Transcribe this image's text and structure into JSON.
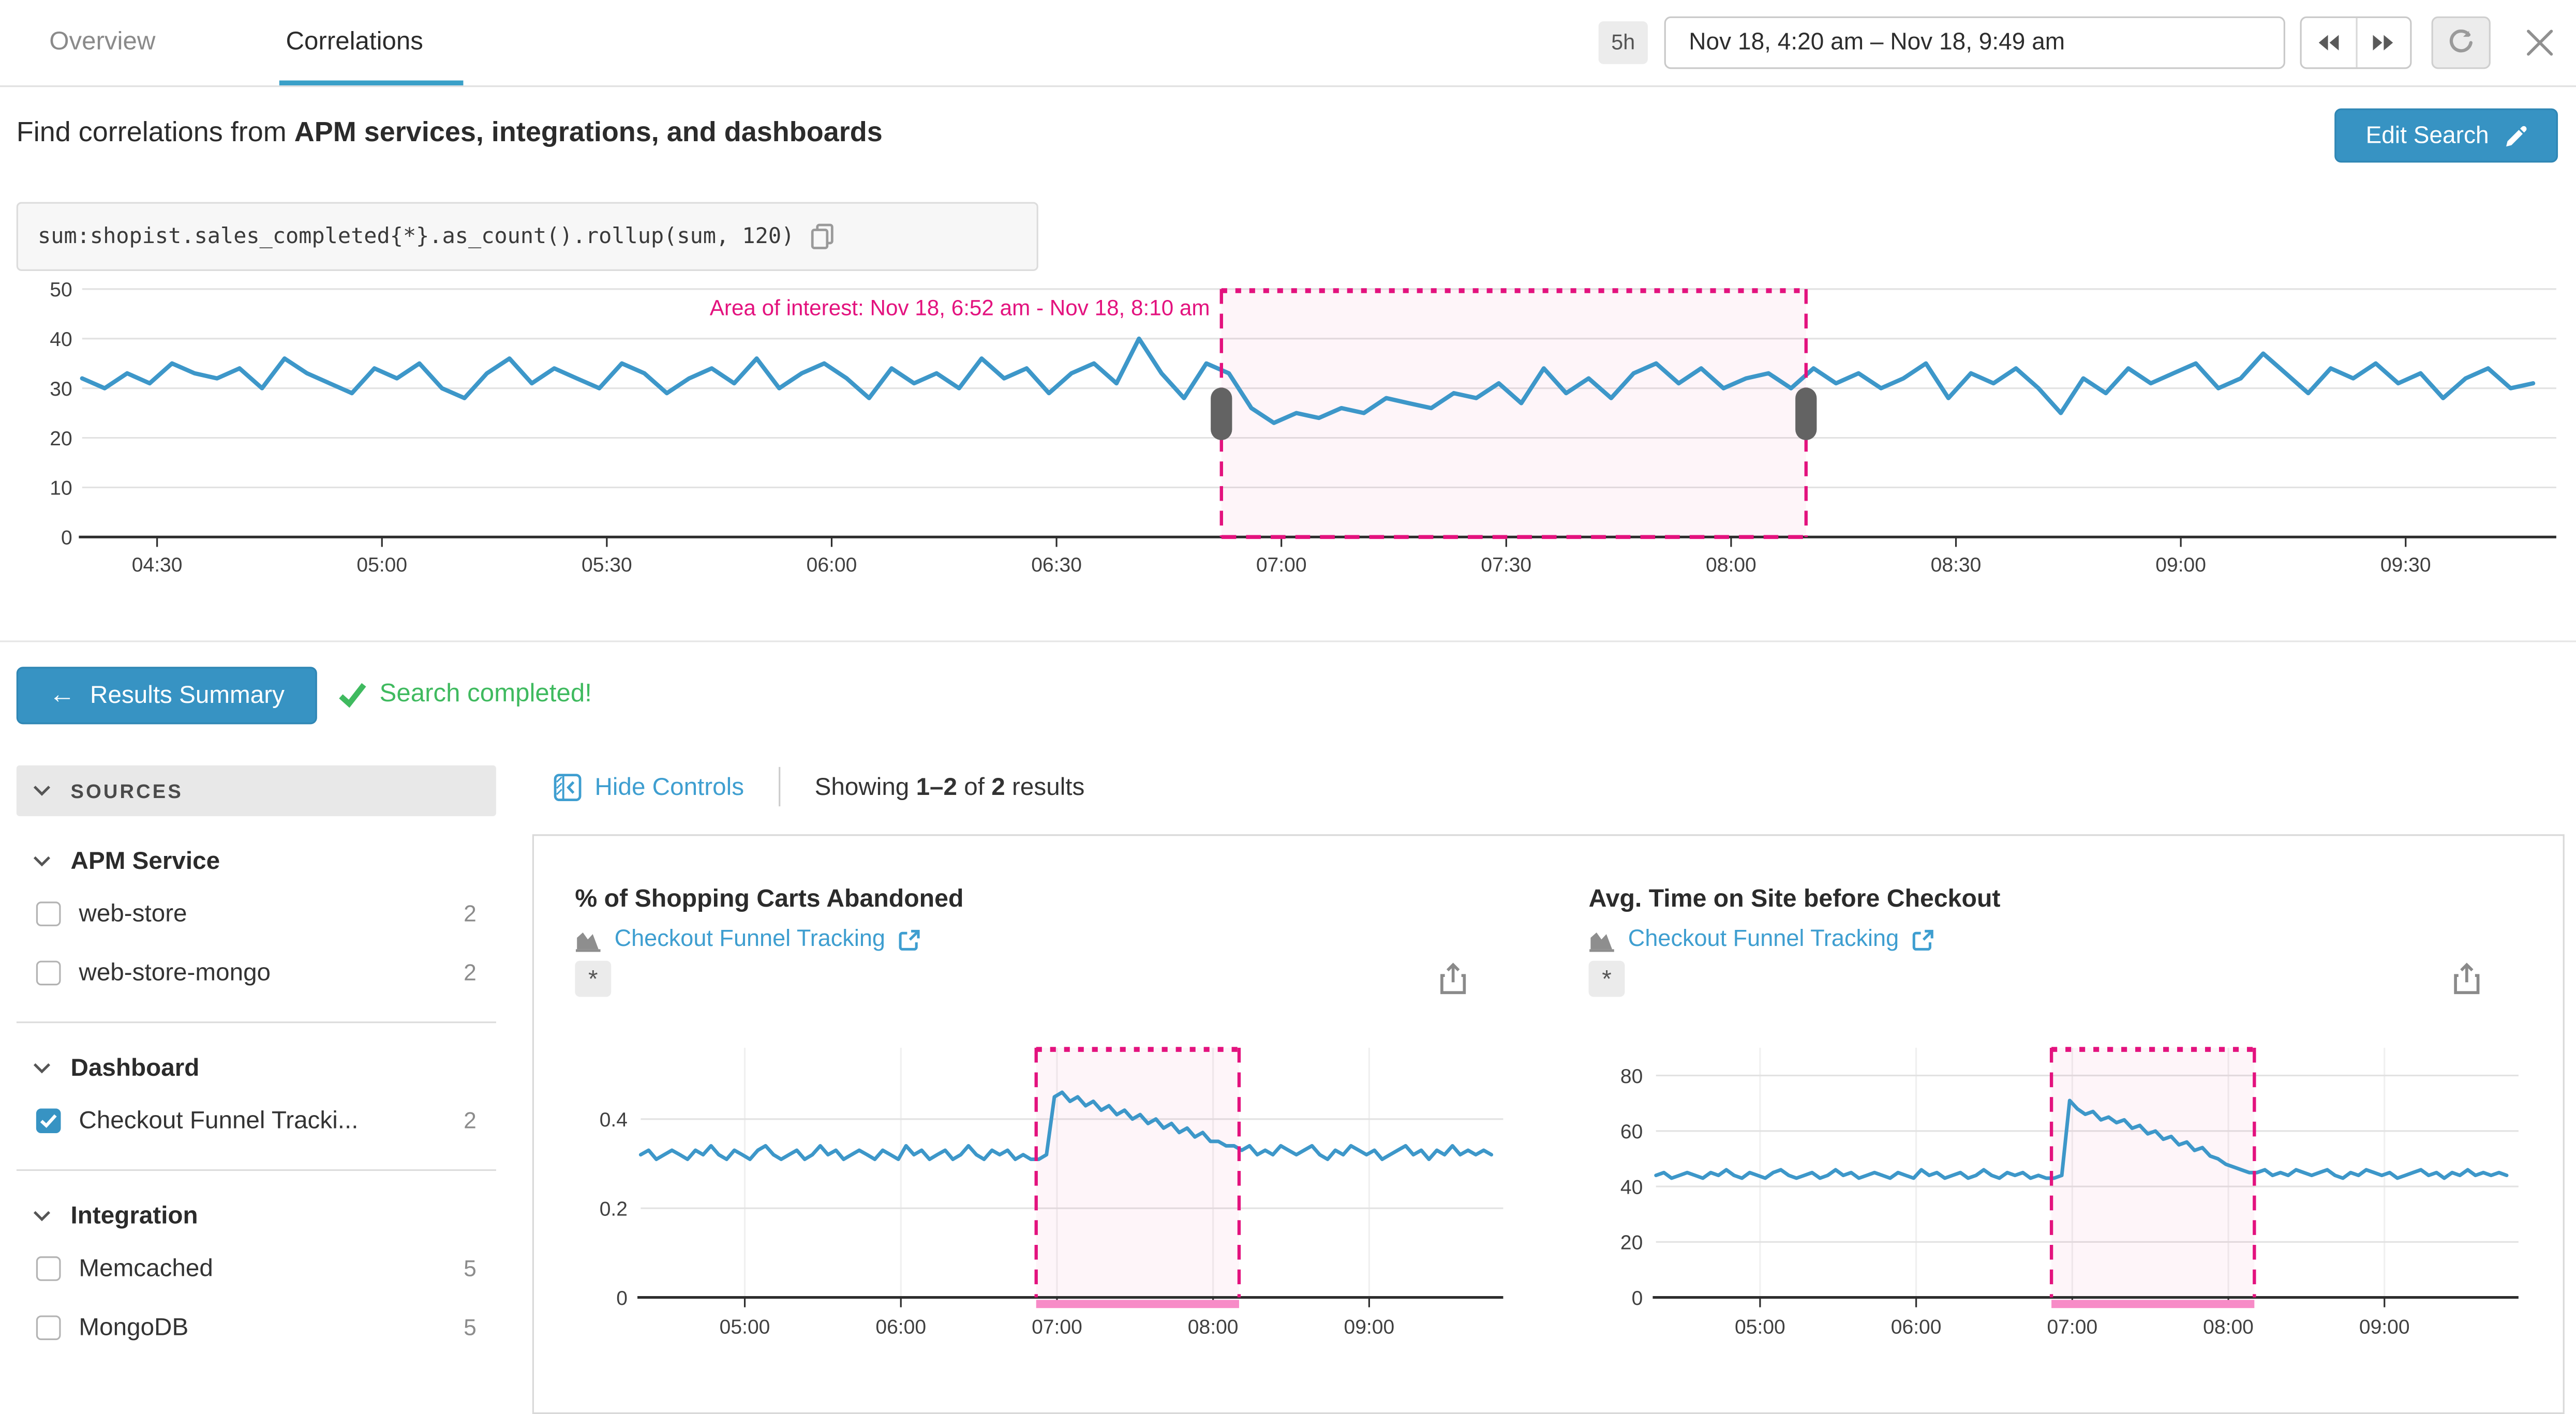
{
  "header": {
    "tabs": [
      {
        "label": "Overview",
        "active": false
      },
      {
        "label": "Correlations",
        "active": true
      }
    ],
    "time": {
      "preset": "5h",
      "range": "Nov 18, 4:20 am – Nov 18, 9:49 am"
    }
  },
  "search": {
    "lead": "Find correlations from",
    "strong": "APM services, integrations, and dashboards",
    "edit_button": "Edit Search",
    "query": "sum:shopist.sales_completed{*}.as_count().rollup(sum, 120)"
  },
  "results_bar": {
    "back_button": "Results Summary",
    "status": "Search completed!"
  },
  "controls": {
    "hide": "Hide Controls",
    "showing_prefix": "Showing",
    "range": "1–2",
    "of": "of",
    "total": "2",
    "suffix": "results"
  },
  "sidebar": {
    "header": "SOURCES",
    "groups": [
      {
        "title": "APM Service",
        "items": [
          {
            "label": "web-store",
            "count": "2",
            "checked": false
          },
          {
            "label": "web-store-mongo",
            "count": "2",
            "checked": false
          }
        ]
      },
      {
        "title": "Dashboard",
        "items": [
          {
            "label": "Checkout Funnel Tracki...",
            "count": "2",
            "checked": true
          }
        ]
      },
      {
        "title": "Integration",
        "items": [
          {
            "label": "Memcached",
            "count": "5",
            "checked": false
          },
          {
            "label": "MongoDB",
            "count": "5",
            "checked": false
          }
        ]
      }
    ]
  },
  "colors": {
    "accent_blue": "#3793c3",
    "link_blue": "#3e9ed0",
    "line_blue": "#3d97c9",
    "pink": "#e3127e",
    "pink_fill": "rgba(233,64,145,0.05)",
    "pink_bar": "#f78bc7",
    "green": "#3fba5f",
    "grid": "#e2e2e2",
    "axis": "#2d2d2d"
  },
  "chart_data": [
    {
      "id": "main-query-chart",
      "type": "line",
      "title": "",
      "series_name": "sum:shopist.sales_completed{*}.as_count().rollup(sum, 120)",
      "x_start_min": 260,
      "x_end_min": 589,
      "step_min": 3,
      "x_domain_labels": [
        "04:20",
        "09:49"
      ],
      "ylim": [
        0,
        50
      ],
      "y_ticks": [
        0,
        10,
        20,
        30,
        40,
        50
      ],
      "x_ticks": [
        {
          "t": 270,
          "label": "04:30"
        },
        {
          "t": 300,
          "label": "05:00"
        },
        {
          "t": 330,
          "label": "05:30"
        },
        {
          "t": 360,
          "label": "06:00"
        },
        {
          "t": 390,
          "label": "06:30"
        },
        {
          "t": 420,
          "label": "07:00"
        },
        {
          "t": 450,
          "label": "07:30"
        },
        {
          "t": 480,
          "label": "08:00"
        },
        {
          "t": 510,
          "label": "08:30"
        },
        {
          "t": 540,
          "label": "09:00"
        },
        {
          "t": 570,
          "label": "09:30"
        }
      ],
      "values": [
        32,
        30,
        33,
        31,
        35,
        33,
        32,
        34,
        30,
        36,
        33,
        31,
        29,
        34,
        32,
        35,
        30,
        28,
        33,
        36,
        31,
        34,
        32,
        30,
        35,
        33,
        29,
        32,
        34,
        31,
        36,
        30,
        33,
        35,
        32,
        28,
        34,
        31,
        33,
        30,
        36,
        32,
        34,
        29,
        33,
        35,
        31,
        40,
        33,
        28,
        35,
        33,
        26,
        23,
        25,
        24,
        26,
        25,
        28,
        27,
        26,
        29,
        28,
        31,
        27,
        34,
        29,
        32,
        28,
        33,
        35,
        31,
        34,
        30,
        32,
        33,
        30,
        34,
        31,
        33,
        30,
        32,
        35,
        28,
        33,
        31,
        34,
        30,
        25,
        32,
        29,
        34,
        31,
        33,
        35,
        30,
        32,
        37,
        33,
        29,
        34,
        32,
        35,
        31,
        33,
        28,
        32,
        34,
        30,
        31
      ],
      "area": {
        "from_min": 412,
        "to_min": 490,
        "from_label": "Nov 18, 6:52 am",
        "to_label": "Nov 18, 8:10 am",
        "label": "Area of interest: Nov 18, 6:52 am - Nov 18, 8:10 am",
        "handles": true
      }
    },
    {
      "id": "carts-abandoned-chart",
      "type": "line",
      "title": "% of Shopping Carts Abandoned",
      "source_link": "Checkout Funnel Tracking",
      "scope": "*",
      "x_start_min": 260,
      "x_end_min": 589,
      "step_min": 3,
      "ylim": [
        0,
        0.56
      ],
      "y_ticks": [
        0,
        0.2,
        0.4
      ],
      "x_ticks": [
        {
          "t": 300,
          "label": "05:00"
        },
        {
          "t": 360,
          "label": "06:00"
        },
        {
          "t": 420,
          "label": "07:00"
        },
        {
          "t": 480,
          "label": "08:00"
        },
        {
          "t": 540,
          "label": "09:00"
        }
      ],
      "values": [
        0.32,
        0.33,
        0.31,
        0.32,
        0.33,
        0.32,
        0.31,
        0.33,
        0.32,
        0.34,
        0.32,
        0.31,
        0.33,
        0.32,
        0.31,
        0.33,
        0.34,
        0.32,
        0.31,
        0.32,
        0.33,
        0.31,
        0.32,
        0.34,
        0.32,
        0.33,
        0.31,
        0.32,
        0.33,
        0.32,
        0.31,
        0.33,
        0.32,
        0.31,
        0.34,
        0.32,
        0.33,
        0.31,
        0.32,
        0.33,
        0.31,
        0.32,
        0.34,
        0.32,
        0.31,
        0.33,
        0.32,
        0.33,
        0.31,
        0.32,
        0.31,
        0.31,
        0.32,
        0.45,
        0.46,
        0.44,
        0.45,
        0.43,
        0.44,
        0.42,
        0.43,
        0.41,
        0.42,
        0.4,
        0.41,
        0.39,
        0.4,
        0.38,
        0.39,
        0.37,
        0.38,
        0.36,
        0.37,
        0.35,
        0.35,
        0.34,
        0.34,
        0.33,
        0.34,
        0.32,
        0.33,
        0.32,
        0.34,
        0.33,
        0.32,
        0.33,
        0.34,
        0.32,
        0.31,
        0.33,
        0.32,
        0.34,
        0.33,
        0.32,
        0.33,
        0.31,
        0.32,
        0.33,
        0.34,
        0.32,
        0.33,
        0.31,
        0.33,
        0.32,
        0.34,
        0.32,
        0.33,
        0.32,
        0.33,
        0.32
      ],
      "area": {
        "from_min": 412,
        "to_min": 490,
        "handles": false
      }
    },
    {
      "id": "time-on-site-chart",
      "type": "line",
      "title": "Avg. Time on Site before Checkout",
      "source_link": "Checkout Funnel Tracking",
      "scope": "*",
      "x_start_min": 260,
      "x_end_min": 589,
      "step_min": 3,
      "ylim": [
        0,
        90
      ],
      "y_ticks": [
        0,
        20,
        40,
        60,
        80
      ],
      "x_ticks": [
        {
          "t": 300,
          "label": "05:00"
        },
        {
          "t": 360,
          "label": "06:00"
        },
        {
          "t": 420,
          "label": "07:00"
        },
        {
          "t": 480,
          "label": "08:00"
        },
        {
          "t": 540,
          "label": "09:00"
        }
      ],
      "values": [
        44,
        45,
        43,
        44,
        45,
        44,
        43,
        45,
        44,
        46,
        44,
        43,
        45,
        44,
        43,
        45,
        46,
        44,
        43,
        44,
        45,
        43,
        44,
        46,
        44,
        45,
        43,
        44,
        45,
        44,
        43,
        45,
        44,
        43,
        46,
        44,
        45,
        43,
        44,
        45,
        43,
        44,
        46,
        44,
        43,
        45,
        44,
        45,
        43,
        44,
        43,
        43,
        44,
        71,
        68,
        66,
        67,
        64,
        65,
        63,
        64,
        61,
        62,
        59,
        60,
        57,
        58,
        55,
        56,
        53,
        54,
        51,
        50,
        48,
        47,
        46,
        45,
        45,
        46,
        44,
        45,
        44,
        46,
        45,
        44,
        45,
        46,
        44,
        43,
        45,
        44,
        46,
        45,
        44,
        45,
        43,
        44,
        45,
        46,
        44,
        45,
        43,
        45,
        44,
        46,
        44,
        45,
        44,
        45,
        44
      ],
      "area": {
        "from_min": 412,
        "to_min": 490,
        "handles": false
      }
    }
  ]
}
